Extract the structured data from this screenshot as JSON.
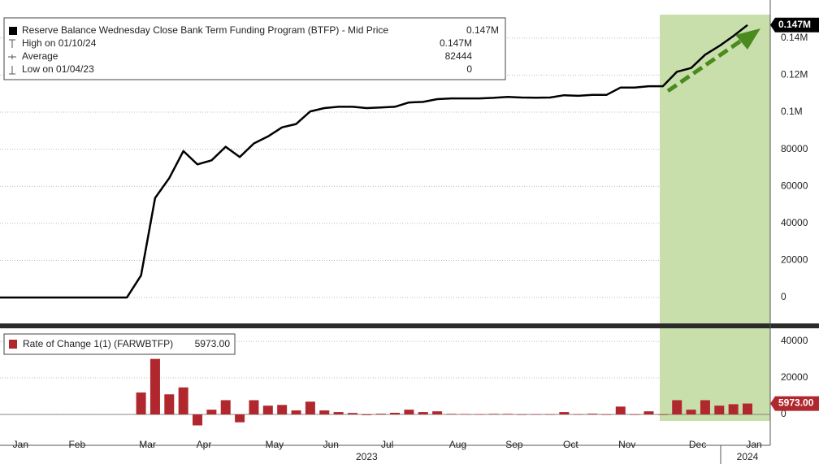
{
  "chart_data": [
    {
      "type": "line",
      "series": [
        {
          "name": "Reserve Balance Wednesday Close Bank Term Funding Program (BTFP) - Mid Price",
          "color": "#000000",
          "last_label": "0.147M",
          "values": [
            0,
            0,
            0,
            0,
            0,
            0,
            0,
            0,
            0,
            0,
            11900,
            53700,
            64400,
            79000,
            71800,
            74000,
            81300,
            75800,
            83100,
            86900,
            91800,
            93600,
            100400,
            102200,
            102900,
            102900,
            102200,
            102500,
            102900,
            105200,
            105500,
            107000,
            107400,
            107400,
            107400,
            107700,
            108200,
            107900,
            107800,
            107900,
            109100,
            108800,
            109300,
            109300,
            113300,
            113300,
            114000,
            114000,
            121800,
            123800,
            131000,
            135700,
            141027,
            147000
          ]
        }
      ],
      "stats": [
        {
          "label": "High on 01/10/24",
          "value": 147000,
          "value_label": "0.147M"
        },
        {
          "label": "Average",
          "value": 82444
        },
        {
          "label": "Low on 01/04/23",
          "value": 0
        }
      ],
      "ylim": [
        -14000,
        160500
      ],
      "yticks": [
        0,
        20000,
        40000,
        60000,
        80000,
        {
          "value": 100000,
          "label": "0.1M"
        },
        {
          "value": 120000,
          "label": "0.12M"
        },
        {
          "value": 140000,
          "label": "0.14M"
        }
      ],
      "grid": true
    },
    {
      "type": "bar",
      "categories": [
        null,
        "Jan",
        null,
        null,
        null,
        "Feb",
        null,
        null,
        null,
        null,
        "Mar",
        null,
        null,
        null,
        "Apr",
        null,
        null,
        null,
        null,
        "May",
        null,
        null,
        null,
        "Jun",
        null,
        null,
        null,
        "Jul",
        null,
        null,
        null,
        null,
        "Aug",
        null,
        null,
        null,
        "Sep",
        null,
        null,
        null,
        "Oct",
        null,
        null,
        null,
        "Nov",
        null,
        null,
        null,
        null,
        "Dec",
        null,
        null,
        null,
        "Jan"
      ],
      "year_labels": [
        null,
        null,
        null,
        null,
        null,
        null,
        null,
        null,
        null,
        null,
        null,
        null,
        null,
        null,
        null,
        null,
        null,
        null,
        null,
        null,
        null,
        null,
        null,
        null,
        null,
        null,
        "2023",
        null,
        null,
        null,
        null,
        null,
        null,
        null,
        null,
        null,
        null,
        null,
        null,
        null,
        null,
        null,
        null,
        null,
        null,
        null,
        null,
        null,
        null,
        null,
        null,
        null,
        null,
        "2024"
      ],
      "series": [
        {
          "name": "Rate of Change 1(1) (FARWBTFP)",
          "color": "#b0282e",
          "last_label": "5973.00",
          "values": [
            null,
            null,
            null,
            null,
            null,
            null,
            null,
            null,
            null,
            null,
            12000,
            30400,
            11000,
            14800,
            -6000,
            2600,
            7800,
            -4300,
            7800,
            4800,
            5200,
            2200,
            7000,
            2200,
            1300,
            800,
            -400,
            400,
            900,
            2600,
            1300,
            1700,
            300,
            200,
            100,
            300,
            300,
            -200,
            100,
            100,
            1300,
            100,
            400,
            0,
            4300,
            0,
            1700,
            0,
            7800,
            2600,
            7800,
            4800,
            5600,
            5973
          ]
        }
      ],
      "ylim": [
        -16900,
        46700
      ],
      "yticks": [
        0,
        20000,
        40000
      ],
      "grid": true
    }
  ]
}
